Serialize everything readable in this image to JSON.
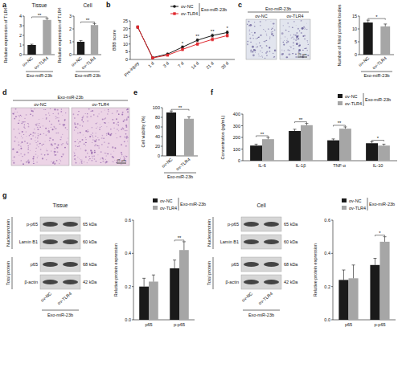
{
  "panels": [
    "a",
    "b",
    "c",
    "d",
    "e",
    "f",
    "g"
  ],
  "chart_data": [
    {
      "type": "bar",
      "title": "Tissue",
      "y_label": "Relative expression of TLR4",
      "x_label": "Exo-miR-23b",
      "categories": [
        "ov-NC",
        "ov-TLR4"
      ],
      "values": [
        1.0,
        3.6
      ],
      "errors": [
        0.08,
        0.15
      ],
      "colors": [
        "#1a1a1a",
        "#a6a6a6"
      ],
      "ylim": [
        0,
        4
      ],
      "yticks": [
        0,
        1,
        2,
        3,
        4
      ],
      "annotations": [
        {
          "text": "**"
        }
      ]
    },
    {
      "type": "bar",
      "title": "Cell",
      "y_label": "Relative expression of TLR4",
      "x_label": "Exo-miR-23b",
      "categories": [
        "ov-NC",
        "ov-TLR4"
      ],
      "values": [
        1.0,
        2.3
      ],
      "errors": [
        0.1,
        0.12
      ],
      "colors": [
        "#1a1a1a",
        "#a6a6a6"
      ],
      "ylim": [
        0,
        3
      ],
      "yticks": [
        0,
        1,
        2,
        3
      ],
      "annotations": [
        {
          "text": "**"
        }
      ]
    },
    {
      "type": "line",
      "y_label": "BBB score",
      "legend_title": "Exo-miR-23b",
      "categories": [
        "Pre-injury",
        "1 d",
        "3 d",
        "7 d",
        "14 d",
        "21 d",
        "28 d"
      ],
      "series": [
        {
          "name": "ov-NC",
          "color": "#1a1a1a",
          "marker": "circle",
          "values": [
            21,
            1.2,
            3.5,
            8,
            12.5,
            15.5,
            17.5
          ],
          "errors": [
            0.8,
            0.4,
            0.6,
            0.8,
            0.9,
            1,
            1
          ]
        },
        {
          "name": "ov-TLR4",
          "color": "#e0282e",
          "marker": "square",
          "values": [
            21,
            1,
            2.8,
            6.5,
            10,
            13,
            15.5
          ],
          "errors": [
            0.8,
            0.4,
            0.6,
            0.8,
            0.9,
            1,
            1
          ]
        }
      ],
      "ylim": [
        0,
        25
      ],
      "yticks": [
        0,
        5,
        10,
        15,
        20,
        25
      ],
      "annotations": [
        {
          "category": "7 d",
          "text": "*"
        },
        {
          "category": "14 d",
          "text": "**"
        },
        {
          "category": "21 d",
          "text": "**"
        },
        {
          "category": "28 d",
          "text": "*"
        }
      ]
    },
    {
      "type": "bar",
      "y_label": "Number of Nissl positive bodies",
      "x_label": "Exo-miR-23b",
      "categories": [
        "ov-NC",
        "ov-TLR4"
      ],
      "values": [
        12.5,
        11
      ],
      "errors": [
        0.9,
        0.9
      ],
      "colors": [
        "#1a1a1a",
        "#a6a6a6"
      ],
      "ylim": [
        0,
        15
      ],
      "yticks": [
        0,
        5,
        10,
        15
      ],
      "annotations": [
        {
          "text": "*"
        }
      ]
    },
    {
      "type": "bar",
      "y_label": "Cell viability (%)",
      "x_label": "Exo-miR-23b",
      "categories": [
        "ov-NC",
        "ov-TLR4"
      ],
      "values": [
        90,
        77
      ],
      "errors": [
        3,
        4
      ],
      "colors": [
        "#1a1a1a",
        "#a6a6a6"
      ],
      "ylim": [
        0,
        100
      ],
      "yticks": [
        0,
        20,
        40,
        60,
        80,
        100
      ],
      "annotations": [
        {
          "text": "**"
        }
      ]
    },
    {
      "type": "bar",
      "y_label": "Concentration (pg/mL)",
      "legend_title": "Exo-miR-23b",
      "categories": [
        "IL-6",
        "IL-1β",
        "TNF-α",
        "IL-10"
      ],
      "series": [
        {
          "name": "ov-NC",
          "color": "#1a1a1a",
          "values": [
            130,
            255,
            175,
            150
          ],
          "errors": [
            12,
            15,
            12,
            12
          ]
        },
        {
          "name": "ov-TLR4",
          "color": "#a6a6a6",
          "values": [
            185,
            305,
            275,
            130
          ],
          "errors": [
            15,
            15,
            15,
            12
          ]
        }
      ],
      "ylim": [
        0,
        400
      ],
      "yticks": [
        0,
        100,
        200,
        300,
        400
      ],
      "annotations": [
        {
          "category": "IL-6",
          "text": "**"
        },
        {
          "category": "IL-1β",
          "text": "**"
        },
        {
          "category": "TNF-α",
          "text": "**"
        },
        {
          "category": "IL-10",
          "text": "*"
        }
      ]
    },
    {
      "type": "bar",
      "y_label": "Relative protein expression",
      "legend_title": "Exo-miR-23b",
      "categories": [
        "p65",
        "p-p65"
      ],
      "series": [
        {
          "name": "ov-NC",
          "color": "#1a1a1a",
          "values": [
            0.2,
            0.31
          ],
          "errors": [
            0.05,
            0.05
          ]
        },
        {
          "name": "ov-TLR4",
          "color": "#a6a6a6",
          "values": [
            0.23,
            0.42
          ],
          "errors": [
            0.04,
            0.05
          ]
        }
      ],
      "ylim": [
        0,
        0.6
      ],
      "yticks": [
        {
          "value": 0,
          "label": "0.0"
        },
        0.2,
        0.4,
        0.6
      ],
      "annotations": [
        {
          "category": "p-p65",
          "text": "**"
        }
      ]
    },
    {
      "type": "bar",
      "y_label": "Relative protein expression",
      "legend_title": "Exo-miR-23b",
      "categories": [
        "p65",
        "p-p65"
      ],
      "series": [
        {
          "name": "ov-NC",
          "color": "#1a1a1a",
          "values": [
            0.24,
            0.33
          ],
          "errors": [
            0.06,
            0.04
          ]
        },
        {
          "name": "ov-TLR4",
          "color": "#a6a6a6",
          "values": [
            0.25,
            0.47
          ],
          "errors": [
            0.08,
            0.03
          ]
        }
      ],
      "ylim": [
        0,
        0.6
      ],
      "yticks": [
        {
          "value": 0,
          "label": "0.0"
        },
        0.2,
        0.4,
        0.6
      ],
      "annotations": [
        {
          "category": "p-p65",
          "text": "*"
        }
      ]
    }
  ],
  "images": [
    {
      "group": "Exo-miR-23b",
      "labels": [
        "ov-NC",
        "ov-TLR4"
      ],
      "scale_bar": "25 μm"
    },
    {
      "group": "Exo-miR-23b",
      "labels": [
        "ov-NC",
        "ov-TLR4"
      ],
      "scale_bar": "25 μm"
    }
  ],
  "blots": [
    {
      "title": "Tissue",
      "groups": [
        {
          "label": "Nucleoprotein",
          "rows": [
            {
              "protein": "p-p65",
              "size": "65 kDa"
            },
            {
              "protein": "Lamin B1",
              "size": "60 kDa"
            }
          ]
        },
        {
          "label": "Total protein",
          "rows": [
            {
              "protein": "p65",
              "size": "68 kDa"
            },
            {
              "protein": "β-actin",
              "size": "42 kDa"
            }
          ]
        }
      ],
      "lanes": [
        "ov-NC",
        "ov-TLR4"
      ],
      "lane_group": "Exo-miR-23b"
    },
    {
      "title": "Cell",
      "groups": [
        {
          "label": "Nucleoprotein",
          "rows": [
            {
              "protein": "p-p65",
              "size": "65 kDa"
            },
            {
              "protein": "Lamin B1",
              "size": "60 kDa"
            }
          ]
        },
        {
          "label": "Total protein",
          "rows": [
            {
              "protein": "p65",
              "size": "68 kDa"
            },
            {
              "protein": "β-actin",
              "size": "42 kDa"
            }
          ]
        }
      ],
      "lanes": [
        "ov-NC",
        "ov-TLR4"
      ],
      "lane_group": "Exo-miR-23b"
    }
  ]
}
